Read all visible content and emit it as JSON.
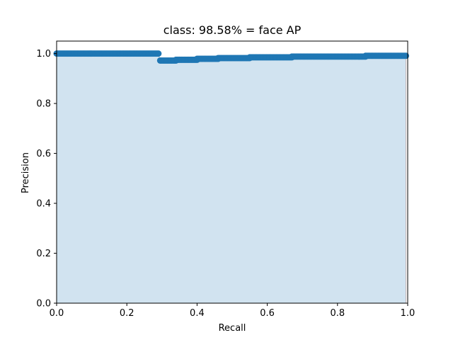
{
  "chart_data": {
    "type": "area",
    "title": "class: 98.58% = face AP",
    "xlabel": "Recall",
    "ylabel": "Precision",
    "xlim": [
      0.0,
      1.0
    ],
    "ylim": [
      0.0,
      1.05
    ],
    "xticks": [
      "0.0",
      "0.2",
      "0.4",
      "0.6",
      "0.8",
      "1.0"
    ],
    "yticks": [
      "0.0",
      "0.2",
      "0.4",
      "0.6",
      "0.8",
      "1.0"
    ],
    "grid": false,
    "legend": "none",
    "colors": {
      "marker": "#1f77b4",
      "fill": "#d1e3f0",
      "edge": "#c8b8b8"
    },
    "series": [
      {
        "segments": [
          {
            "x_start": 0.0,
            "x_end": 0.29,
            "y": 1.0
          },
          {
            "x_start": 0.295,
            "x_end": 0.34,
            "y": 0.972
          },
          {
            "x_start": 0.34,
            "x_end": 0.4,
            "y": 0.975
          },
          {
            "x_start": 0.4,
            "x_end": 0.46,
            "y": 0.979
          },
          {
            "x_start": 0.46,
            "x_end": 0.55,
            "y": 0.982
          },
          {
            "x_start": 0.55,
            "x_end": 0.67,
            "y": 0.985
          },
          {
            "x_start": 0.67,
            "x_end": 0.88,
            "y": 0.988
          },
          {
            "x_start": 0.88,
            "x_end": 0.995,
            "y": 0.991
          }
        ]
      }
    ]
  }
}
